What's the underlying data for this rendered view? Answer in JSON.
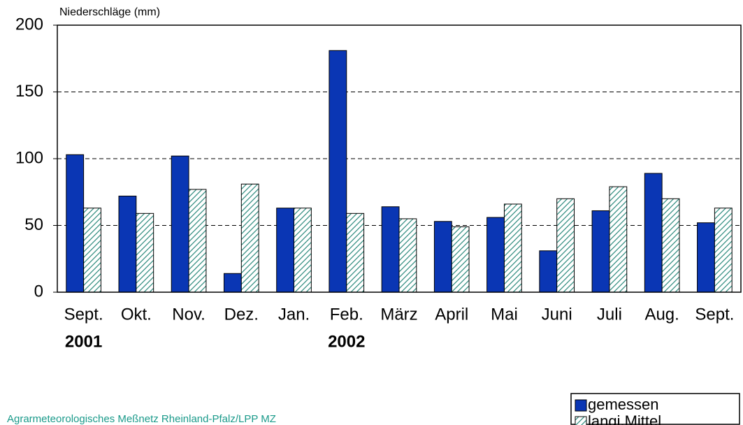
{
  "chart_data": {
    "type": "bar",
    "title": "Niederschläge (mm)",
    "source": "Agrarmeteorologisches Meßnetz Rheinland-Pfalz/LPP MZ",
    "categories": [
      "Sept.",
      "Okt.",
      "Nov.",
      "Dez.",
      "Jan.",
      "Feb.",
      "März",
      "April",
      "Mai",
      "Juni",
      "Juli",
      "Aug.",
      "Sept."
    ],
    "year_labels": [
      "2001",
      null,
      null,
      null,
      null,
      "2002",
      null,
      null,
      null,
      null,
      null,
      null,
      null
    ],
    "series": [
      {
        "name": "gemessen",
        "color": "#0a36b4",
        "hatch": false,
        "values": [
          103,
          72,
          102,
          14,
          63,
          181,
          64,
          53,
          56,
          31,
          61,
          89,
          52
        ]
      },
      {
        "name": "langj.Mittel",
        "color": "#2e8b7e",
        "hatch": true,
        "values": [
          63,
          59,
          77,
          81,
          63,
          59,
          55,
          49,
          66,
          70,
          79,
          70,
          63
        ]
      }
    ],
    "ylim": [
      0,
      200
    ],
    "yticks": [
      0,
      50,
      100,
      150,
      200
    ],
    "grid": true,
    "legend": "bottom-right"
  }
}
